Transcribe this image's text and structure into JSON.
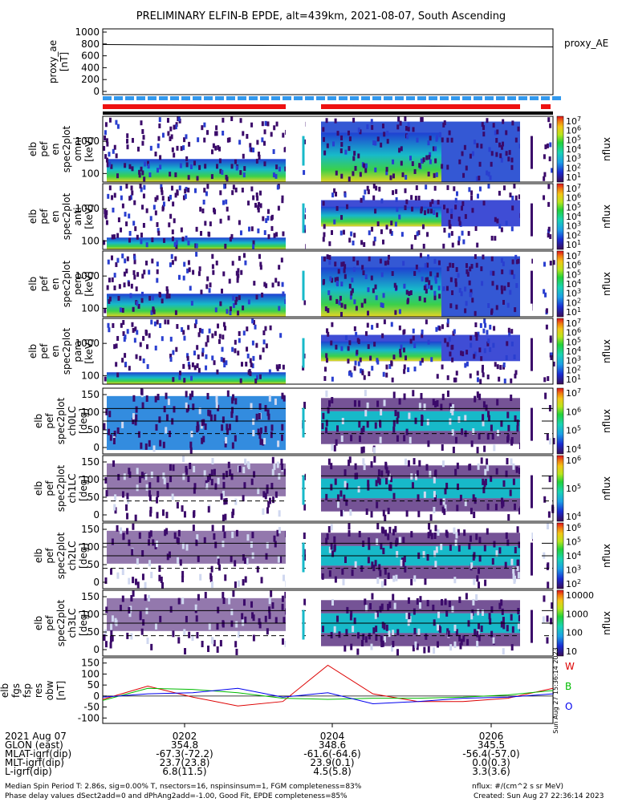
{
  "title": "PRELIMINARY ELFIN-B EPDE, alt=439km, 2021-08-07, South Ascending",
  "colors": {
    "bar_red": "#ee1111",
    "bar_blue": "#3399ee",
    "fgs_w": "#dd0000",
    "fgs_b": "#00bb00",
    "fgs_o": "#0000ee"
  },
  "panels": {
    "ae": {
      "ylabel": [
        "proxy_ae",
        "[nT]"
      ],
      "ticks": [
        "1000",
        "800",
        "600",
        "400",
        "200",
        "0"
      ],
      "legend": "proxy_AE"
    },
    "en": [
      {
        "ylabel": [
          "elb",
          "pef",
          "en",
          "spec2plot",
          "omni",
          "[keV]"
        ],
        "ticks": [
          "1000",
          "100"
        ],
        "cb_label": "nflux",
        "cb_ticks": [
          "10^7",
          "10^6",
          "10^5",
          "10^4",
          "10^3",
          "10^2",
          "10^1"
        ]
      },
      {
        "ylabel": [
          "elb",
          "pef",
          "en",
          "spec2plot",
          "anti",
          "[keV]"
        ],
        "ticks": [
          "1000",
          "100"
        ],
        "cb_label": "nflux",
        "cb_ticks": [
          "10^7",
          "10^6",
          "10^5",
          "10^4",
          "10^3",
          "10^2",
          "10^1"
        ]
      },
      {
        "ylabel": [
          "elb",
          "pef",
          "en",
          "spec2plot",
          "perp",
          "[keV]"
        ],
        "ticks": [
          "1000",
          "100"
        ],
        "cb_label": "nflux",
        "cb_ticks": [
          "10^7",
          "10^6",
          "10^5",
          "10^4",
          "10^3",
          "10^2",
          "10^1"
        ]
      },
      {
        "ylabel": [
          "elb",
          "pef",
          "en",
          "spec2plot",
          "para",
          "[keV]"
        ],
        "ticks": [
          "1000",
          "100"
        ],
        "cb_label": "nflux",
        "cb_ticks": [
          "10^7",
          "10^6",
          "10^5",
          "10^4",
          "10^3",
          "10^2",
          "10^1"
        ]
      }
    ],
    "pa": [
      {
        "ylabel": [
          "elb",
          "pef",
          "spec2plot",
          "ch0LC",
          "[deg]"
        ],
        "ticks": [
          "150",
          "100",
          "50",
          "0"
        ],
        "cb_label": "nflux",
        "cb_ticks": [
          "10^7",
          "10^6",
          "10^5",
          "10^4"
        ]
      },
      {
        "ylabel": [
          "elb",
          "pef",
          "spec2plot",
          "ch1LC",
          "[deg]"
        ],
        "ticks": [
          "150",
          "100",
          "50",
          "0"
        ],
        "cb_label": "nflux",
        "cb_ticks": [
          "10^6",
          "10^5",
          "10^4"
        ]
      },
      {
        "ylabel": [
          "elb",
          "pef",
          "spec2plot",
          "ch2LC",
          "[deg]"
        ],
        "ticks": [
          "150",
          "100",
          "50",
          "0"
        ],
        "cb_label": "nflux",
        "cb_ticks": [
          "10^6",
          "10^5",
          "10^4",
          "10^3",
          "10^2"
        ]
      },
      {
        "ylabel": [
          "elb",
          "pef",
          "spec2plot",
          "ch3LC",
          "[deg]"
        ],
        "ticks": [
          "150",
          "100",
          "50",
          "0"
        ],
        "cb_label": "nflux",
        "cb_ticks": [
          "10000",
          "1000",
          "100",
          "10"
        ]
      }
    ],
    "fgs": {
      "ylabel": [
        "elb",
        "fgs",
        "fsp",
        "res",
        "obw",
        "[nT]"
      ],
      "ticks": [
        "150",
        "100",
        "50",
        "0",
        "-50",
        "-100"
      ],
      "legend": [
        "W",
        "B",
        "O"
      ],
      "stamp": "Sun Aug 27 15:36:14 2023"
    }
  },
  "axis": {
    "row_labels": [
      "2021 Aug 07",
      "GLON (east)",
      "MLAT-igrf(dip)",
      "MLT-igrf(dip)",
      "L-igrf(dip)"
    ],
    "columns": [
      {
        "time": "0202",
        "glon": "354.8",
        "mlat": "-67.3(-72.2)",
        "mlt": "23.7(23.8)",
        "l": "6.8(11.5)"
      },
      {
        "time": "0204",
        "glon": "348.6",
        "mlat": "-61.6(-64.6)",
        "mlt": "23.9(0.1)",
        "l": "4.5(5.8)"
      },
      {
        "time": "0206",
        "glon": "345.5",
        "mlat": "-56.4(-57.0)",
        "mlt": "0.0(0.3)",
        "l": "3.3(3.6)"
      }
    ]
  },
  "footer": {
    "line1": "Median Spin Period T: 2.86s, sig=0.00% T, nsectors=16, nspinsinsum=1, FGM completeness=83%",
    "line2": "Phase delay values dSect2add=0 and dPhAng2add=-1.00, Good Fit, EPDE completeness=85%",
    "units": "nflux: #/(cm^2 s sr MeV)",
    "created": "Created: Sun Aug 27 22:36:14 2023"
  },
  "chart_data": {
    "type": "line",
    "title": "PRELIMINARY ELFIN-B EPDE, alt=439km, 2021-08-07, South Ascending",
    "x_time_ticks": [
      "0202",
      "0204",
      "0206"
    ],
    "x": [
      0,
      10,
      20,
      30,
      40,
      50,
      60,
      70,
      80,
      90,
      100
    ],
    "series": [
      {
        "name": "proxy_AE",
        "units": "nT",
        "ylim": [
          0,
          1000
        ],
        "values": [
          790,
          785,
          782,
          778,
          775,
          772,
          768,
          765,
          760,
          755,
          750
        ]
      },
      {
        "name": "W",
        "units": "nT",
        "ylim": [
          -110,
          160
        ],
        "values": [
          -15,
          45,
          -5,
          -45,
          -25,
          140,
          10,
          -25,
          -25,
          -10,
          35
        ]
      },
      {
        "name": "B",
        "units": "nT",
        "ylim": [
          -110,
          160
        ],
        "values": [
          -20,
          35,
          30,
          15,
          -10,
          -15,
          -10,
          -10,
          -5,
          5,
          25
        ]
      },
      {
        "name": "O",
        "units": "nT",
        "ylim": [
          -110,
          160
        ],
        "values": [
          -5,
          10,
          15,
          35,
          -5,
          15,
          -35,
          -25,
          -10,
          -5,
          10
        ]
      }
    ]
  }
}
